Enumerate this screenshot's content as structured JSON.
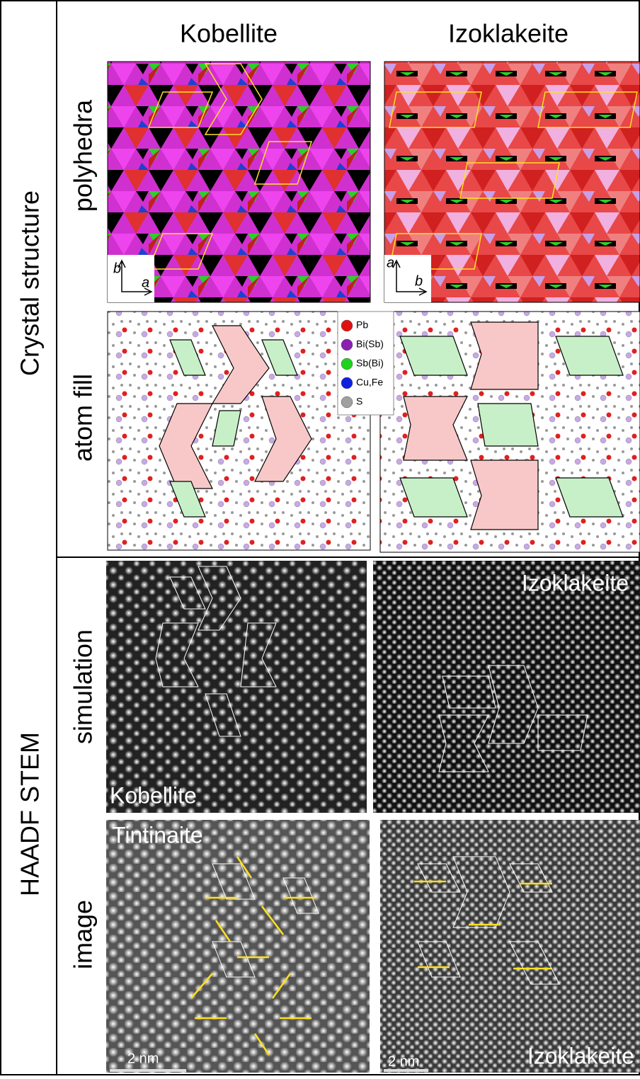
{
  "groups": [
    "Crystal structure",
    "HAADF STEM"
  ],
  "columns": [
    "Kobellite",
    "Izoklakeite"
  ],
  "rows": [
    "polyhedra",
    "atom fill",
    "simulation",
    "image"
  ],
  "axes": [
    {
      "vertical": "b",
      "horizontal": "a"
    },
    {
      "vertical": "a",
      "horizontal": "b"
    }
  ],
  "legend": [
    {
      "label": "Pb",
      "color": "#e01010"
    },
    {
      "label": "Bi(Sb)",
      "color": "#8a1fb0"
    },
    {
      "label": "Sb(Bi)",
      "color": "#1ed21e"
    },
    {
      "label": "Cu,Fe",
      "color": "#1020e0"
    },
    {
      "label": "S",
      "color": "#a0a0a0"
    }
  ],
  "panel_labels": {
    "simulation_left": "Kobellite",
    "simulation_right": "Izoklakeite",
    "image_left": "Tintinaite",
    "image_right": "Izoklakeite"
  },
  "scale_bars": [
    "2 nm",
    "2 nm"
  ]
}
